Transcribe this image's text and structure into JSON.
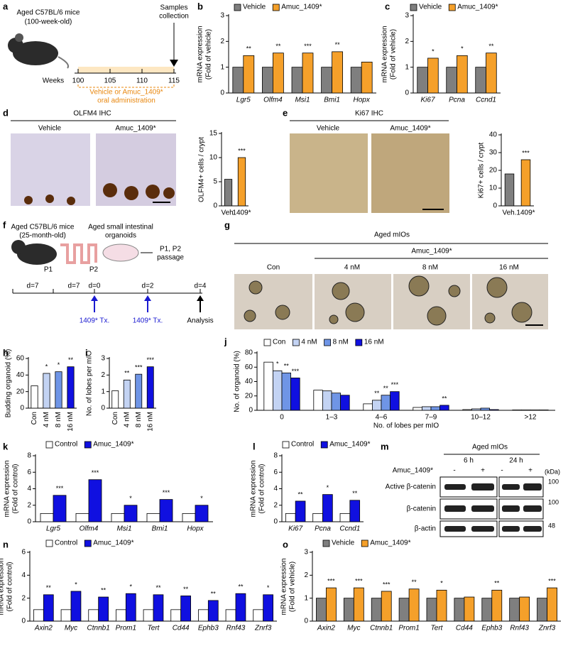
{
  "panels": {
    "a": {
      "letter": "a",
      "mouse": [
        "Aged C57BL/6 mice",
        "(100-week-old)"
      ],
      "timeline_label": "Weeks",
      "weeks": [
        "100",
        "105",
        "110",
        "115"
      ],
      "endpoint": [
        "Samples",
        "collection"
      ],
      "treatment": [
        "Vehicle or Amuc_1409*",
        "oral administration"
      ]
    },
    "d": {
      "letter": "d",
      "title": "OLFM4 IHC",
      "images": [
        "Vehicle",
        "Amuc_1409*"
      ]
    },
    "e": {
      "letter": "e",
      "title": "Ki67 IHC",
      "images": [
        "Vehicle",
        "Amuc_1409*"
      ]
    },
    "f": {
      "letter": "f",
      "mouse": [
        "Aged C57BL/6 mice",
        "(25-month-old)"
      ],
      "organoids": [
        "Aged small intestinal",
        "organoids"
      ],
      "passages": [
        "P1",
        "P2"
      ],
      "outcome": [
        "P1, P2",
        "passage"
      ],
      "intervals": [
        "d=7",
        "d=7"
      ],
      "days": [
        "d=0",
        "d=2",
        "d=4"
      ],
      "treatments": [
        "1409* Tx.",
        "1409* Tx."
      ],
      "endpoint": "Analysis"
    },
    "g": {
      "letter": "g",
      "title": "Aged mIOs",
      "group": "Amuc_1409*",
      "images": [
        "Con",
        "4 nM",
        "8 nM",
        "16 nM"
      ]
    },
    "m": {
      "letter": "m",
      "title": "Aged mIOs",
      "times": [
        "6 h",
        "24 h"
      ],
      "treatment": "Amuc_1409*",
      "lanes": [
        "-",
        "+",
        "-",
        "+"
      ],
      "unit": "(kDa)",
      "blots": [
        "Active β-catenin",
        "β-catenin",
        "β-actin"
      ],
      "markers": [
        "100",
        "100",
        "48"
      ]
    }
  },
  "chart_data": [
    {
      "panel": "b",
      "type": "bar",
      "ylabel": [
        "mRNA expression",
        "(Fold of vehicle)"
      ],
      "categories": [
        "Lgr5",
        "Olfm4",
        "Msi1",
        "Bmi1",
        "Hopx"
      ],
      "series": [
        {
          "name": "Vehicle",
          "color": "#7f7f7f",
          "values": [
            1,
            1,
            1,
            1,
            1
          ]
        },
        {
          "name": "Amuc_1409*",
          "color": "#f5a02a",
          "values": [
            1.45,
            1.55,
            1.55,
            1.6,
            1.2
          ],
          "annotations": [
            "**",
            "**",
            "***",
            "**",
            null
          ]
        }
      ],
      "ylim": [
        0,
        3
      ],
      "yticks": [
        0,
        1,
        2,
        3
      ]
    },
    {
      "panel": "c",
      "type": "bar",
      "ylabel": [
        "mRNA expression",
        "(Fold of vehicle)"
      ],
      "categories": [
        "Ki67",
        "Pcna",
        "Ccnd1"
      ],
      "series": [
        {
          "name": "Vehicle",
          "color": "#7f7f7f",
          "values": [
            1,
            1,
            1
          ]
        },
        {
          "name": "Amuc_1409*",
          "color": "#f5a02a",
          "values": [
            1.35,
            1.45,
            1.55
          ],
          "annotations": [
            "*",
            "*",
            "**"
          ]
        }
      ],
      "ylim": [
        0,
        3
      ],
      "yticks": [
        0,
        1,
        2,
        3
      ]
    },
    {
      "panel": null,
      "type": "bar",
      "ylabel": [
        "OLFM4+ cells / crypt"
      ],
      "categories": [
        "Veh.",
        "1409*"
      ],
      "values": [
        5.5,
        10
      ],
      "colors": [
        "#7f7f7f",
        "#f5a02a"
      ],
      "annotations": [
        null,
        "***"
      ],
      "ylim": [
        0,
        15
      ],
      "yticks": [
        0,
        5,
        10,
        15
      ]
    },
    {
      "panel": null,
      "type": "bar",
      "ylabel": [
        "Ki67+ cells / crypt"
      ],
      "categories": [
        "Veh.",
        "1409*"
      ],
      "values": [
        18,
        26
      ],
      "colors": [
        "#7f7f7f",
        "#f5a02a"
      ],
      "annotations": [
        null,
        "***"
      ],
      "ylim": [
        0,
        40
      ],
      "yticks": [
        0,
        10,
        20,
        30,
        40
      ]
    },
    {
      "panel": "h",
      "type": "bar",
      "ylabel": [
        "Budding organoid (%)"
      ],
      "categories": [
        "Con",
        "4 nM",
        "8 nM",
        "16 nM"
      ],
      "values": [
        27,
        42,
        44,
        50
      ],
      "colors": [
        "#ffffff",
        "#c3d3f3",
        "#6f95e6",
        "#1010e0"
      ],
      "annotations": [
        null,
        "*",
        "*",
        "**"
      ],
      "ylim": [
        0,
        60
      ],
      "yticks": [
        0,
        20,
        40,
        60
      ]
    },
    {
      "panel": "i",
      "type": "bar",
      "ylabel": [
        "No. of lobes per mIO"
      ],
      "categories": [
        "Con",
        "4 nM",
        "8 nM",
        "16 nM"
      ],
      "values": [
        1.05,
        1.7,
        2.05,
        2.5
      ],
      "colors": [
        "#ffffff",
        "#c3d3f3",
        "#6f95e6",
        "#1010e0"
      ],
      "annotations": [
        null,
        "**",
        "***",
        "***"
      ],
      "ylim": [
        0,
        3
      ],
      "yticks": [
        0,
        1,
        2,
        3
      ]
    },
    {
      "panel": "j",
      "type": "bar",
      "ylabel": [
        "No. of organoid (%)"
      ],
      "xlabel": "No. of lobes per mIO",
      "categories": [
        "0",
        "1–3",
        "4–6",
        "7–9",
        "10–12",
        ">12"
      ],
      "series": [
        {
          "name": "Con",
          "color": "#ffffff",
          "values": [
            67,
            28,
            9,
            4,
            1,
            0.5
          ]
        },
        {
          "name": "4 nM",
          "color": "#c3d3f3",
          "values": [
            55,
            27,
            14,
            5,
            2,
            0.5
          ],
          "annotations": [
            "*",
            null,
            "**",
            null,
            null,
            null
          ]
        },
        {
          "name": "8 nM",
          "color": "#6f95e6",
          "values": [
            52,
            24,
            21,
            5,
            3,
            0.5
          ],
          "annotations": [
            "**",
            null,
            "**",
            null,
            null,
            null
          ]
        },
        {
          "name": "16 nM",
          "color": "#1010e0",
          "values": [
            45,
            21,
            26,
            7,
            1,
            0.5
          ],
          "annotations": [
            "***",
            null,
            "***",
            "**",
            null,
            null
          ]
        }
      ],
      "ylim": [
        0,
        80
      ],
      "yticks": [
        0,
        20,
        40,
        60,
        80
      ]
    },
    {
      "panel": "k",
      "type": "bar",
      "ylabel": [
        "mRNA expression",
        "(Fold of control)"
      ],
      "categories": [
        "Lgr5",
        "Olfm4",
        "Msi1",
        "Bmi1",
        "Hopx"
      ],
      "series": [
        {
          "name": "Control",
          "color": "#ffffff",
          "values": [
            1,
            1,
            1,
            1,
            1
          ]
        },
        {
          "name": "Amuc_1409*",
          "color": "#1010e0",
          "values": [
            3.2,
            5.1,
            2.0,
            2.7,
            2.0
          ],
          "annotations": [
            "***",
            "***",
            "*",
            "***",
            "*"
          ]
        }
      ],
      "ylim": [
        0,
        8
      ],
      "yticks": [
        0,
        2,
        4,
        6,
        8
      ]
    },
    {
      "panel": "l",
      "type": "bar",
      "ylabel": [
        "mRNA expression",
        "(Fold of control)"
      ],
      "categories": [
        "Ki67",
        "Pcna",
        "Ccnd1"
      ],
      "series": [
        {
          "name": "Control",
          "color": "#ffffff",
          "values": [
            1,
            1,
            1
          ]
        },
        {
          "name": "Amuc_1409*",
          "color": "#1010e0",
          "values": [
            2.5,
            3.3,
            2.6
          ],
          "annotations": [
            "**",
            "*",
            "**"
          ]
        }
      ],
      "ylim": [
        0,
        8
      ],
      "yticks": [
        0,
        2,
        4,
        6,
        8
      ]
    },
    {
      "panel": "n",
      "type": "bar",
      "ylabel": [
        "mRNA expression",
        "(Fold of control)"
      ],
      "categories": [
        "Axin2",
        "Myc",
        "Ctnnb1",
        "Prom1",
        "Tert",
        "Cd44",
        "Ephb3",
        "Rnf43",
        "Znrf3"
      ],
      "series": [
        {
          "name": "Control",
          "color": "#ffffff",
          "values": [
            1,
            1,
            1,
            1,
            1,
            1,
            1,
            1,
            1
          ]
        },
        {
          "name": "Amuc_1409*",
          "color": "#1010e0",
          "values": [
            2.3,
            2.6,
            2.1,
            2.4,
            2.3,
            2.2,
            1.8,
            2.4,
            2.3
          ],
          "annotations": [
            "**",
            "*",
            "**",
            "*",
            "**",
            "**",
            "**",
            "**",
            "*"
          ]
        }
      ],
      "ylim": [
        0,
        6
      ],
      "yticks": [
        0,
        2,
        4,
        6
      ]
    },
    {
      "panel": "o",
      "type": "bar",
      "ylabel": [
        "mRNA expression",
        "(Fold of vehicle)"
      ],
      "categories": [
        "Axin2",
        "Myc",
        "Ctnnb1",
        "Prom1",
        "Tert",
        "Cd44",
        "Ephb3",
        "Rnf43",
        "Znrf3"
      ],
      "series": [
        {
          "name": "Vehicle",
          "color": "#7f7f7f",
          "values": [
            1,
            1,
            1,
            1,
            1,
            1,
            1,
            1,
            1
          ]
        },
        {
          "name": "Amuc_1409*",
          "color": "#f5a02a",
          "values": [
            1.45,
            1.45,
            1.3,
            1.4,
            1.35,
            1.05,
            1.35,
            1.05,
            1.45
          ],
          "annotations": [
            "***",
            "***",
            "***",
            "**",
            "*",
            null,
            "**",
            null,
            "***"
          ]
        }
      ],
      "ylim": [
        0,
        3
      ],
      "yticks": [
        0,
        1,
        2,
        3
      ]
    }
  ]
}
